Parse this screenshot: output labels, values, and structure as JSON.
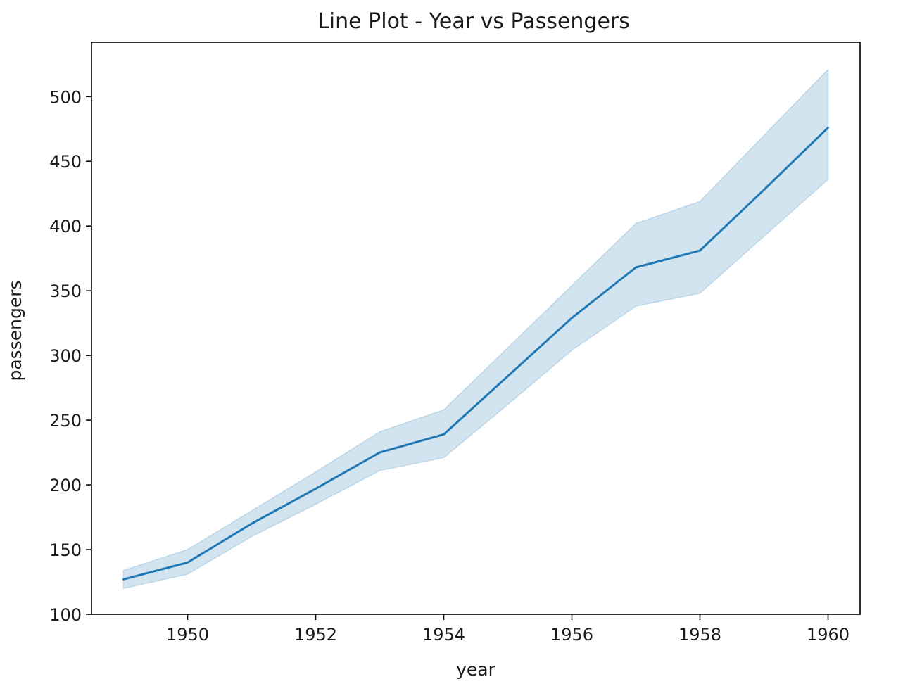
{
  "chart_data": {
    "type": "line",
    "title": "Line Plot - Year vs Passengers",
    "xlabel": "year",
    "ylabel": "passengers",
    "xlim": [
      1948.5,
      1960.5
    ],
    "ylim": [
      100,
      542
    ],
    "xticks": [
      1950,
      1952,
      1954,
      1956,
      1958,
      1960
    ],
    "yticks": [
      100,
      150,
      200,
      250,
      300,
      350,
      400,
      450,
      500
    ],
    "grid": false,
    "line_color": "#1f77b4",
    "band_color": "#1f77b4",
    "series": [
      {
        "x": [
          1949,
          1950,
          1951,
          1952,
          1953,
          1954,
          1955,
          1956,
          1957,
          1958,
          1959,
          1960
        ],
        "values": [
          127,
          140,
          170,
          197,
          225,
          239,
          284,
          329,
          368,
          381,
          428,
          476
        ],
        "ci_lower": [
          120,
          131,
          160,
          185,
          211,
          221,
          262,
          304,
          338,
          348,
          392,
          436
        ],
        "ci_upper": [
          134,
          150,
          180,
          210,
          241,
          258,
          306,
          354,
          402,
          419,
          470,
          521
        ]
      }
    ]
  }
}
